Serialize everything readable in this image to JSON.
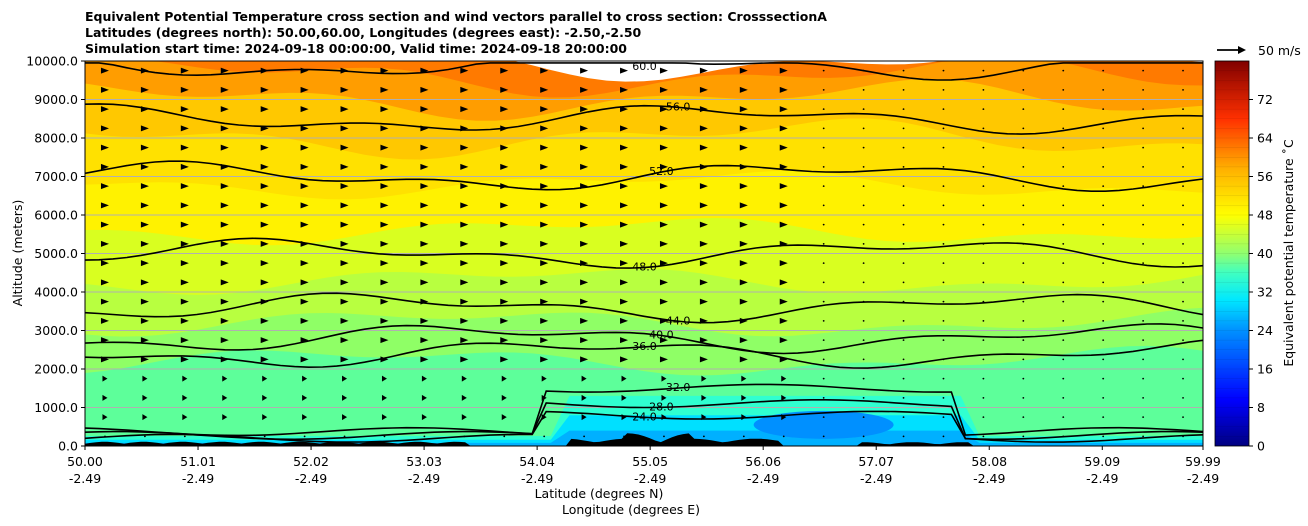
{
  "titles": {
    "line1": "Equivalent Potential Temperature cross section and wind vectors parallel to cross section: CrosssectionA",
    "line2": "Latitudes (degrees north): 50.00,60.00, Longitudes (degrees east): -2.50,-2.50",
    "line3": "Simulation start time: 2024-09-18 00:00:00, Valid time: 2024-09-18 20:00:00"
  },
  "chart_data": {
    "type": "heatmap",
    "title": "Equivalent Potential Temperature cross section and wind vectors parallel to cross section: CrosssectionA",
    "ylabel": "Altitude (meters)",
    "xlabel_lat": "Latitude (degrees N)",
    "xlabel_lon": "Longitude (degrees E)",
    "ylim": [
      0,
      10000
    ],
    "xlim": [
      50.0,
      59.99
    ],
    "y_ticks": [
      0,
      1000,
      2000,
      3000,
      4000,
      5000,
      6000,
      7000,
      8000,
      9000,
      10000
    ],
    "y_tick_labels": [
      "0.0",
      "1000.0",
      "2000.0",
      "3000.0",
      "4000.0",
      "5000.0",
      "6000.0",
      "7000.0",
      "8000.0",
      "9000.0",
      "10000.0"
    ],
    "x_ticks": [
      50.0,
      51.01,
      52.02,
      53.03,
      54.04,
      55.05,
      56.06,
      57.07,
      58.08,
      59.09,
      59.99
    ],
    "x_tick_lat_labels": [
      "50.00",
      "51.01",
      "52.02",
      "53.03",
      "54.04",
      "55.05",
      "56.06",
      "57.07",
      "58.08",
      "59.09",
      "59.99"
    ],
    "x_tick_lon_labels": [
      "-2.49",
      "-2.49",
      "-2.49",
      "-2.49",
      "-2.49",
      "-2.49",
      "-2.49",
      "-2.49",
      "-2.49",
      "-2.49",
      "-2.49"
    ],
    "colorbar": {
      "label": "Equivalent potential temperature ˚C",
      "min": 0,
      "max": 80,
      "ticks": [
        0,
        8,
        16,
        24,
        32,
        40,
        48,
        56,
        64,
        72
      ],
      "tick_labels": [
        "0",
        "8",
        "16",
        "24",
        "32",
        "40",
        "48",
        "56",
        "64",
        "72"
      ]
    },
    "wind_key": {
      "label": "50 m/s"
    },
    "contour_levels": [
      {
        "value": 24.0,
        "height_m": 800
      },
      {
        "value": 28.0,
        "height_m": 1100
      },
      {
        "value": 32.0,
        "height_m": 1500
      },
      {
        "value": 36.0,
        "height_m": 2400
      },
      {
        "value": 40.0,
        "height_m": 2800
      },
      {
        "value": 44.0,
        "height_m": 3600
      },
      {
        "value": 48.0,
        "height_m": 5000
      },
      {
        "value": 52.0,
        "height_m": 7000
      },
      {
        "value": 56.0,
        "height_m": 8500
      },
      {
        "value": 60.0,
        "height_m": 9900
      }
    ],
    "contour_labels": [
      "24.0",
      "28.0",
      "32.0",
      "36.0",
      "40.0",
      "44.0",
      "48.0",
      "52.0",
      "56.0",
      "60.0"
    ],
    "colors": {
      "low": "#0000b0",
      "mid": "#2ffff0",
      "high_mid": "#ffe000",
      "high": "#b00000"
    }
  }
}
